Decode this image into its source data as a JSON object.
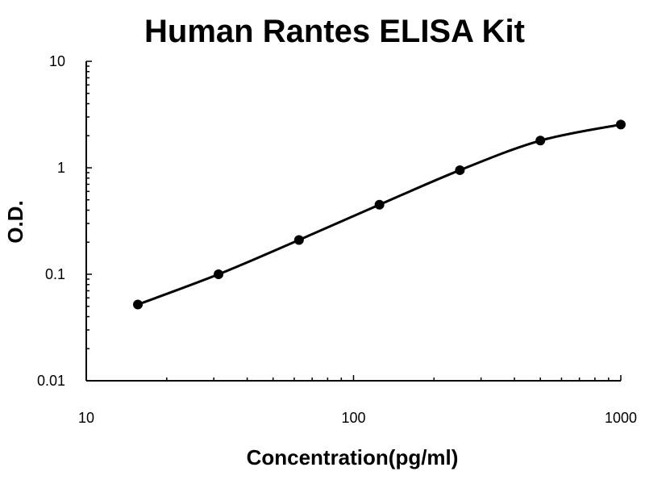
{
  "chart_data": {
    "type": "scatter",
    "title": "Human Rantes ELISA Kit",
    "xlabel": "Concentration(pg/ml)",
    "ylabel": "O.D.",
    "x_scale": "log",
    "y_scale": "log",
    "xlim": [
      10,
      1000
    ],
    "ylim": [
      0.01,
      10
    ],
    "x_ticks": [
      10,
      100,
      1000
    ],
    "x_tick_labels": [
      "10",
      "100",
      "1000"
    ],
    "y_ticks": [
      0.01,
      0.1,
      1,
      10
    ],
    "y_tick_labels": [
      "0.01",
      "0.1",
      "1",
      "10"
    ],
    "grid": false,
    "legend": "none",
    "series": [
      {
        "x": [
          15.6,
          31.25,
          62.5,
          125,
          250,
          500,
          1000
        ],
        "y": [
          0.052,
          0.1,
          0.21,
          0.45,
          0.95,
          1.8,
          2.55
        ],
        "fit_curve": true,
        "color": "#000000"
      }
    ]
  }
}
